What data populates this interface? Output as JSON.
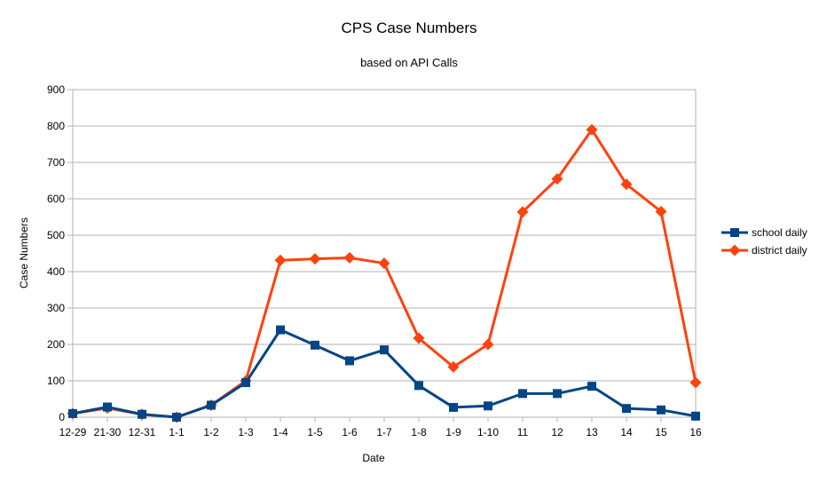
{
  "chart_data": {
    "type": "line",
    "title": "CPS Case Numbers",
    "subtitle": "based on API Calls",
    "xlabel": "Date",
    "ylabel": "Case Numbers",
    "categories": [
      "12-29",
      "21-30",
      "12-31",
      "1-1",
      "1-2",
      "1-3",
      "1-4",
      "1-5",
      "1-6",
      "1-7",
      "1-8",
      "1-9",
      "1-10",
      "11",
      "12",
      "13",
      "14",
      "15",
      "16"
    ],
    "ylim": [
      0,
      900
    ],
    "yticks": [
      0,
      100,
      200,
      300,
      400,
      500,
      600,
      700,
      800,
      900
    ],
    "grid": "horizontal",
    "legend": "right",
    "series": [
      {
        "name": "school daily",
        "color": "#004586",
        "marker": "square",
        "values": [
          10,
          28,
          8,
          0,
          33,
          95,
          240,
          198,
          155,
          185,
          87,
          27,
          31,
          65,
          65,
          85,
          24,
          20,
          3
        ]
      },
      {
        "name": "district daily",
        "color": "#ff420e",
        "marker": "diamond",
        "values": [
          10,
          25,
          8,
          0,
          33,
          100,
          431,
          435,
          438,
          423,
          217,
          138,
          200,
          564,
          655,
          790,
          640,
          565,
          95
        ]
      }
    ]
  }
}
